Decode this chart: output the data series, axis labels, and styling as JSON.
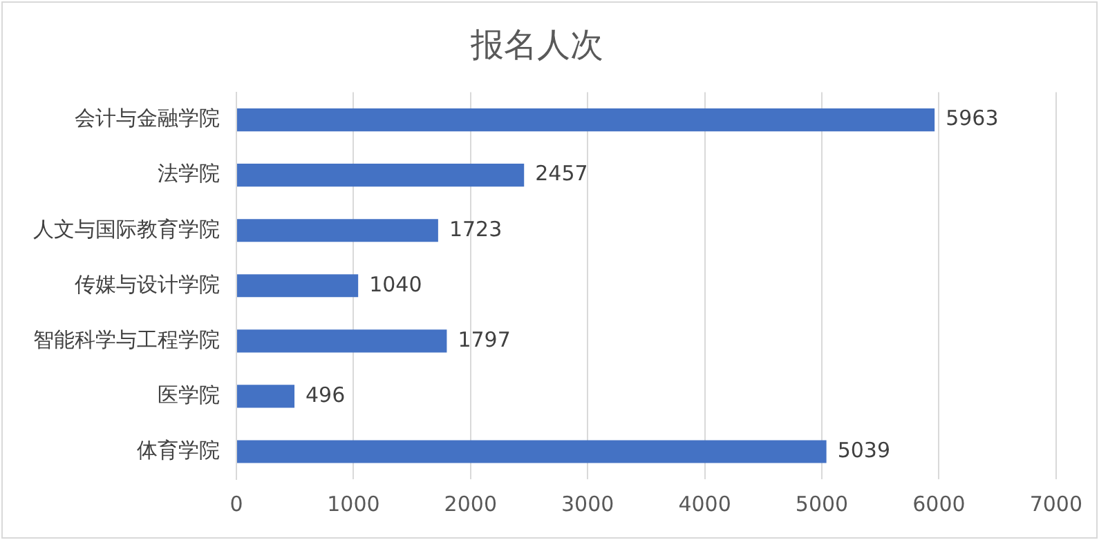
{
  "chart_data": {
    "type": "bar",
    "orientation": "horizontal",
    "title": "报名人次",
    "categories": [
      "会计与金融学院",
      "法学院",
      "人文与国际教育学院",
      "传媒与设计学院",
      "智能科学与工程学院",
      "医学院",
      "体育学院"
    ],
    "values": [
      5963,
      2457,
      1723,
      1040,
      1797,
      496,
      5039
    ],
    "color": "#4472c4",
    "xlim": [
      0,
      7000
    ],
    "xticks": [
      0,
      1000,
      2000,
      3000,
      4000,
      5000,
      6000,
      7000
    ],
    "grid": "x",
    "data_labels": true,
    "legend": false
  }
}
